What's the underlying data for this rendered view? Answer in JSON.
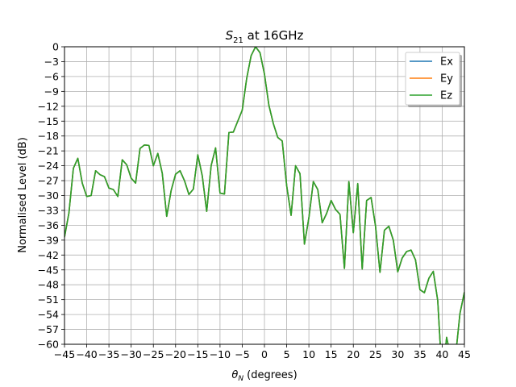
{
  "chart_data": {
    "type": "line",
    "title": "S21 at 16GHz",
    "title_parts": {
      "main": "S",
      "sub": "21",
      "rest": " at 16GHz"
    },
    "xlabel": "θN (degrees)",
    "xlabel_parts": {
      "main": "θ",
      "sub": "N",
      "rest": " (degrees)"
    },
    "ylabel": "Normalised Level (dB)",
    "xlim": [
      -45,
      45
    ],
    "ylim": [
      -60,
      0
    ],
    "xticks": [
      -45,
      -40,
      -35,
      -30,
      -25,
      -20,
      -15,
      -10,
      -5,
      0,
      5,
      10,
      15,
      20,
      25,
      30,
      35,
      40,
      45
    ],
    "yticks": [
      0,
      -3,
      -6,
      -9,
      -12,
      -15,
      -18,
      -21,
      -24,
      -27,
      -30,
      -33,
      -36,
      -39,
      -42,
      -45,
      -48,
      -51,
      -54,
      -57,
      -60
    ],
    "xtick_labels": [
      "−45",
      "−40",
      "−35",
      "−30",
      "−25",
      "−20",
      "−15",
      "−10",
      "−5",
      "0",
      "5",
      "10",
      "15",
      "20",
      "25",
      "30",
      "35",
      "40",
      "45"
    ],
    "ytick_labels": [
      "0",
      "−3",
      "−6",
      "−9",
      "−12",
      "−15",
      "−18",
      "−21",
      "−24",
      "−27",
      "−30",
      "−33",
      "−36",
      "−39",
      "−42",
      "−45",
      "−48",
      "−51",
      "−54",
      "−57",
      "−60"
    ],
    "grid": true,
    "legend_position": "top-right",
    "x": [
      -45,
      -44,
      -43,
      -42,
      -41,
      -40,
      -39,
      -38,
      -37,
      -36,
      -35,
      -34,
      -33,
      -32,
      -31,
      -30,
      -29,
      -28,
      -27,
      -26,
      -25,
      -24,
      -23,
      -22,
      -21,
      -20,
      -19,
      -18,
      -17,
      -16,
      -15,
      -14,
      -13,
      -12,
      -11,
      -10,
      -9,
      -8,
      -7,
      -6,
      -5,
      -4,
      -3,
      -2,
      -1,
      0,
      1,
      2,
      3,
      4,
      5,
      6,
      7,
      8,
      9,
      10,
      11,
      12,
      13,
      14,
      15,
      16,
      17,
      18,
      19,
      20,
      21,
      22,
      23,
      24,
      25,
      26,
      27,
      28,
      29,
      30,
      31,
      32,
      33,
      34,
      35,
      36,
      37,
      38,
      39,
      40,
      41,
      42,
      43,
      44,
      45
    ],
    "series": [
      {
        "name": "Ex",
        "color": "#1f77b4",
        "values": [
          -38.4,
          -33.5,
          -24.5,
          -22.5,
          -27.5,
          -30.2,
          -30.0,
          -25.0,
          -25.8,
          -26.2,
          -28.5,
          -28.8,
          -30.2,
          -22.8,
          -23.8,
          -26.5,
          -27.5,
          -20.5,
          -19.8,
          -19.9,
          -24.0,
          -21.5,
          -25.5,
          -34.2,
          -29.0,
          -25.7,
          -25.0,
          -27.0,
          -29.8,
          -28.7,
          -21.8,
          -26.0,
          -33.2,
          -24.0,
          -20.4,
          -29.5,
          -29.7,
          -17.3,
          -17.2,
          -15.0,
          -12.8,
          -6.4,
          -1.8,
          0.0,
          -1.2,
          -5.5,
          -11.8,
          -15.5,
          -18.3,
          -19.0,
          -28.0,
          -34.0,
          -24.0,
          -25.6,
          -39.8,
          -34.5,
          -27.2,
          -28.8,
          -35.5,
          -33.6,
          -31.0,
          -32.8,
          -33.8,
          -44.7,
          -27.2,
          -37.5,
          -27.6,
          -44.8,
          -31.0,
          -30.4,
          -36.2,
          -45.5,
          -37.0,
          -36.2,
          -39.0,
          -45.4,
          -42.6,
          -41.3,
          -41.0,
          -43.0,
          -49.0,
          -49.6,
          -46.7,
          -45.3,
          -51.2,
          -67.0,
          -58.6,
          -63.0,
          -62.5,
          -53.8,
          -49.5
        ]
      },
      {
        "name": "Ey",
        "color": "#ff7f0e",
        "values": [
          -38.4,
          -33.5,
          -24.5,
          -22.5,
          -27.5,
          -30.2,
          -30.0,
          -25.0,
          -25.8,
          -26.2,
          -28.5,
          -28.8,
          -30.2,
          -22.8,
          -23.8,
          -26.5,
          -27.5,
          -20.5,
          -19.8,
          -19.9,
          -24.0,
          -21.5,
          -25.5,
          -34.2,
          -29.0,
          -25.7,
          -25.0,
          -27.0,
          -29.8,
          -28.7,
          -21.8,
          -26.0,
          -33.2,
          -24.0,
          -20.4,
          -29.5,
          -29.7,
          -17.3,
          -17.2,
          -15.0,
          -12.8,
          -6.4,
          -1.8,
          0.0,
          -1.2,
          -5.5,
          -11.8,
          -15.5,
          -18.3,
          -19.0,
          -28.0,
          -34.0,
          -24.0,
          -25.6,
          -39.8,
          -34.5,
          -27.2,
          -28.8,
          -35.5,
          -33.6,
          -31.0,
          -32.8,
          -33.8,
          -44.7,
          -27.2,
          -37.5,
          -27.6,
          -44.8,
          -31.0,
          -30.4,
          -36.2,
          -45.5,
          -37.0,
          -36.2,
          -39.0,
          -45.4,
          -42.6,
          -41.3,
          -41.0,
          -43.0,
          -49.0,
          -49.6,
          -46.7,
          -45.3,
          -51.2,
          -67.0,
          -58.6,
          -63.0,
          -62.5,
          -53.8,
          -49.5
        ]
      },
      {
        "name": "Ez",
        "color": "#2ca02c",
        "values": [
          -38.4,
          -33.5,
          -24.5,
          -22.5,
          -27.5,
          -30.2,
          -30.0,
          -25.0,
          -25.8,
          -26.2,
          -28.5,
          -28.8,
          -30.2,
          -22.8,
          -23.8,
          -26.5,
          -27.5,
          -20.5,
          -19.8,
          -19.9,
          -24.0,
          -21.5,
          -25.5,
          -34.2,
          -29.0,
          -25.7,
          -25.0,
          -27.0,
          -29.8,
          -28.7,
          -21.8,
          -26.0,
          -33.2,
          -24.0,
          -20.4,
          -29.5,
          -29.7,
          -17.3,
          -17.2,
          -15.0,
          -12.8,
          -6.4,
          -1.8,
          0.0,
          -1.2,
          -5.5,
          -11.8,
          -15.5,
          -18.3,
          -19.0,
          -28.0,
          -34.0,
          -24.0,
          -25.6,
          -39.8,
          -34.5,
          -27.2,
          -28.8,
          -35.5,
          -33.6,
          -31.0,
          -32.8,
          -33.8,
          -44.7,
          -27.2,
          -37.5,
          -27.6,
          -44.8,
          -31.0,
          -30.4,
          -36.2,
          -45.5,
          -37.0,
          -36.2,
          -39.0,
          -45.4,
          -42.6,
          -41.3,
          -41.0,
          -43.0,
          -49.0,
          -49.6,
          -46.7,
          -45.3,
          -51.2,
          -67.0,
          -58.6,
          -63.0,
          -62.5,
          -53.8,
          -49.5
        ]
      }
    ]
  }
}
